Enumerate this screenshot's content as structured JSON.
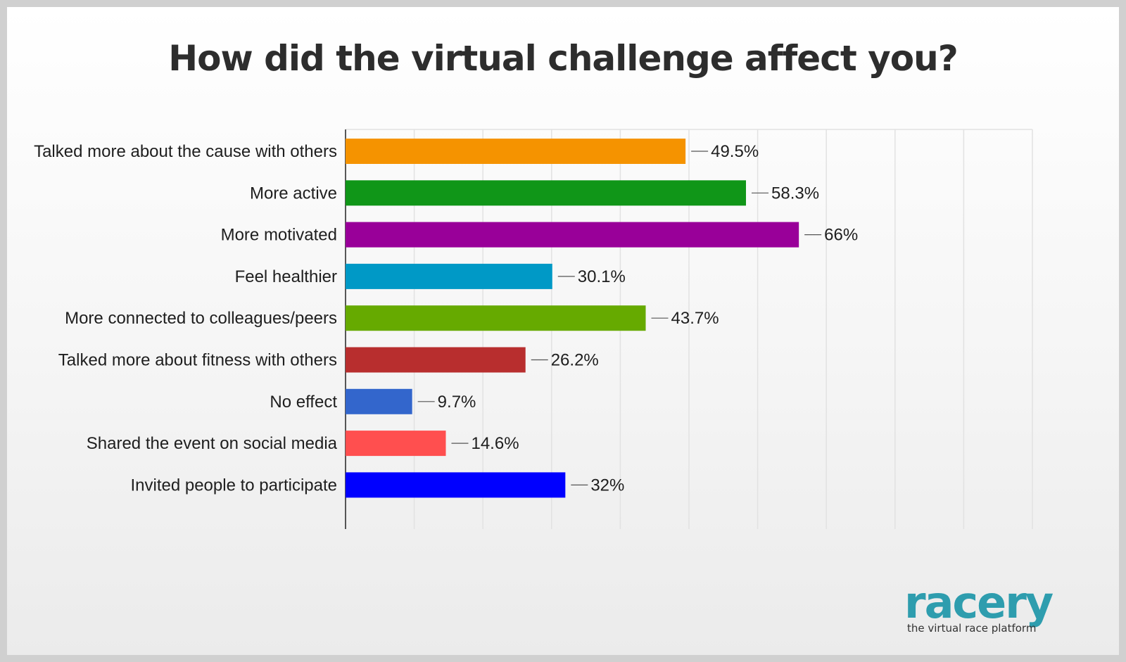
{
  "chart_data": {
    "type": "bar",
    "orientation": "horizontal",
    "title": "How did the virtual challenge affect you?",
    "categories": [
      "Talked more about the cause with others",
      "More active",
      "More motivated",
      "Feel healthier",
      "More connected to colleagues/peers",
      "Talked more about fitness with others",
      "No effect",
      "Shared the event on social media",
      "Invited people to participate"
    ],
    "values": [
      49.5,
      58.3,
      66,
      30.1,
      43.7,
      26.2,
      9.7,
      14.6,
      32
    ],
    "value_labels": [
      "49.5%",
      "58.3%",
      "66%",
      "30.1%",
      "43.7%",
      "26.2%",
      "9.7%",
      "14.6%",
      "32%"
    ],
    "colors": [
      "#f59300",
      "#109618",
      "#990099",
      "#0099c6",
      "#66aa00",
      "#b82e2e",
      "#3366cc",
      "#ff4f4f",
      "#0000ff"
    ],
    "xlim": [
      0,
      100
    ],
    "grid": true,
    "legend": "none"
  },
  "logo": {
    "name": "racery",
    "tagline": "the virtual race platform",
    "color": "#2e9dae"
  }
}
